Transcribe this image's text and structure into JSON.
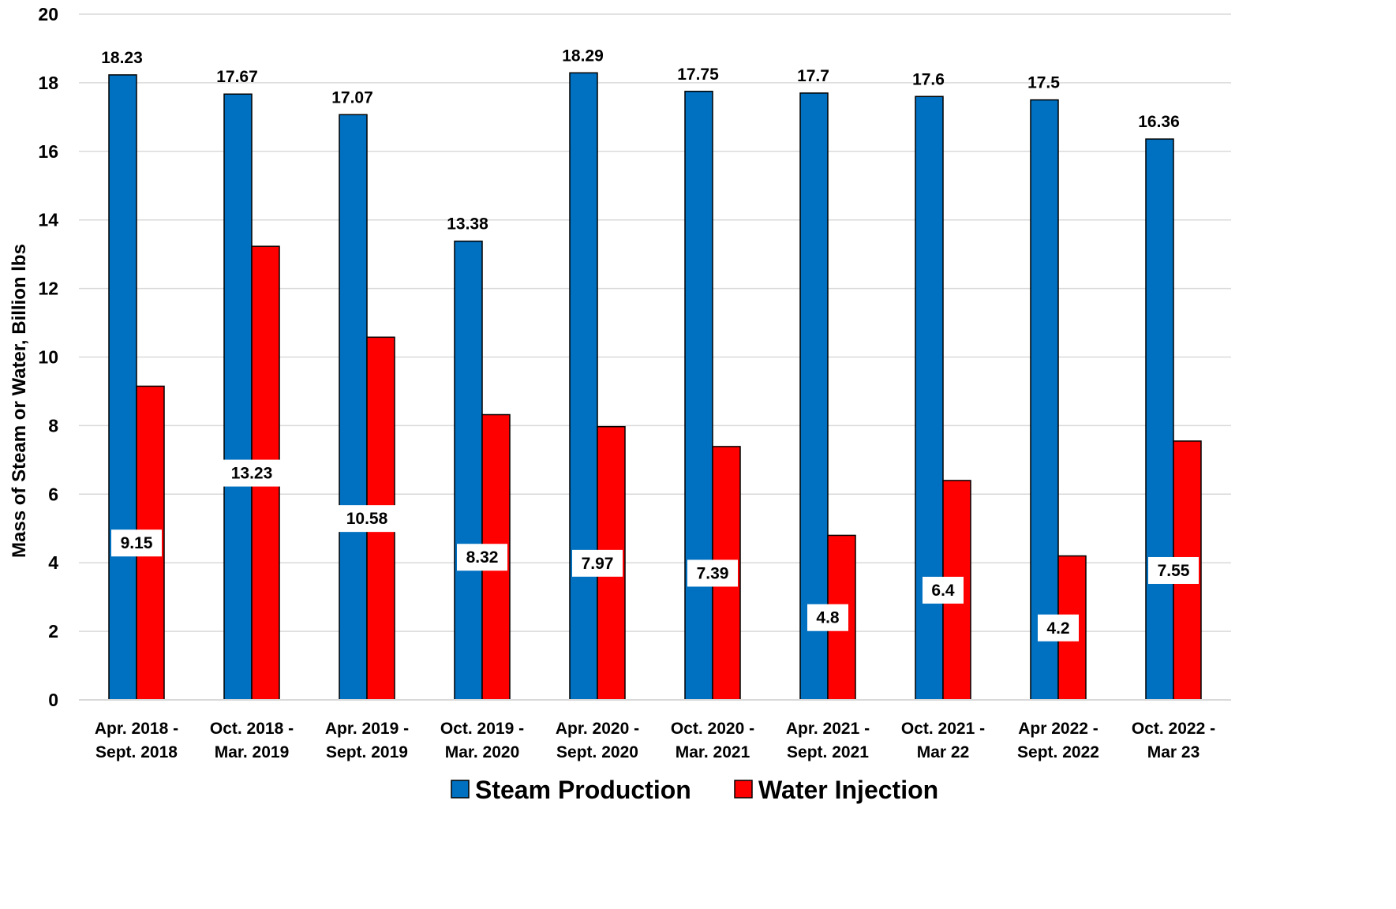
{
  "chart_data": {
    "type": "bar",
    "title": "",
    "xlabel": "",
    "ylabel": "Mass of Steam or Water, Billion lbs",
    "ylim": [
      0,
      20
    ],
    "yticks": [
      0,
      2,
      4,
      6,
      8,
      10,
      12,
      14,
      16,
      18,
      20
    ],
    "grid": true,
    "legend_position": "bottom",
    "categories": [
      [
        "Apr. 2018 -",
        "Sept. 2018"
      ],
      [
        "Oct. 2018 -",
        "Mar. 2019"
      ],
      [
        "Apr. 2019 -",
        "Sept. 2019"
      ],
      [
        "Oct. 2019 -",
        "Mar. 2020"
      ],
      [
        "Apr. 2020 -",
        "Sept. 2020"
      ],
      [
        "Oct. 2020 -",
        "Mar. 2021"
      ],
      [
        "Apr. 2021 -",
        "Sept. 2021"
      ],
      [
        "Oct. 2021 -",
        "Mar 22"
      ],
      [
        "Apr 2022 -",
        "Sept. 2022"
      ],
      [
        "Oct. 2022 -",
        "Mar 23"
      ]
    ],
    "series": [
      {
        "name": "Steam Production",
        "color": "#0070C0",
        "values": [
          18.23,
          17.67,
          17.07,
          13.38,
          18.29,
          17.75,
          17.7,
          17.6,
          17.5,
          16.36
        ],
        "labels": [
          "18.23",
          "17.67",
          "17.07",
          "13.38",
          "18.29",
          "17.75",
          "17.7",
          "17.6",
          "17.5",
          "16.36"
        ],
        "label_position": "above"
      },
      {
        "name": "Water Injection",
        "color": "#FF0000",
        "values": [
          9.15,
          13.23,
          10.58,
          8.32,
          7.97,
          7.39,
          4.8,
          6.4,
          4.2,
          7.55
        ],
        "labels": [
          "9.15",
          "13.23",
          "10.58",
          "8.32",
          "7.97",
          "7.39",
          "4.8",
          "6.4",
          "4.2",
          "7.55"
        ],
        "label_position": "inside-boxed"
      }
    ]
  }
}
